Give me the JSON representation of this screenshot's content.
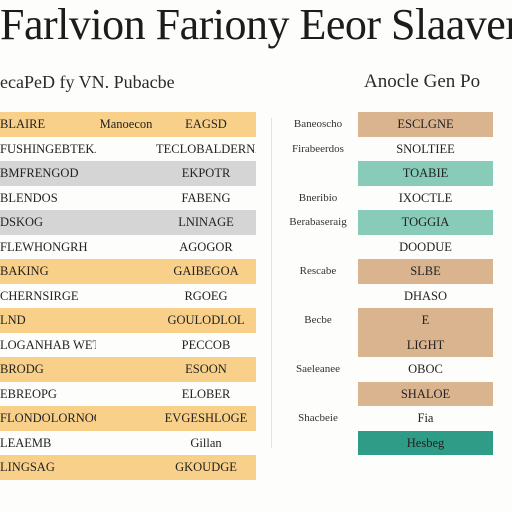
{
  "title": "Farlvion Fariony Eeor Slaaver",
  "headers": {
    "left": "ecaPeD fy VN. Pubacbe",
    "right": "Anocle Gen Po"
  },
  "colors": {
    "orange": "#f9d08a",
    "grey": "#d5d5d5",
    "tan": "#d9b48f",
    "teal": "#88cbb9",
    "teal_dark": "#2e9c86",
    "white": "#fdfdfb"
  },
  "left_rows": [
    {
      "c1": "BLAIRE",
      "c2": "Manoecon",
      "c3": "EAGSD",
      "bg": "orange"
    },
    {
      "c1": "FUSHINGEBTEKATO",
      "c2": "",
      "c3": "TECLOBALDERNAT",
      "bg": "white"
    },
    {
      "c1": "BMFRENGOD",
      "c2": "",
      "c3": "EKPOTR",
      "bg": "grey"
    },
    {
      "c1": "BLENDOS",
      "c2": "",
      "c3": "FABENG",
      "bg": "white"
    },
    {
      "c1": "DSKOG",
      "c2": "",
      "c3": "LNINAGE",
      "bg": "grey"
    },
    {
      "c1": "FLEWHONGRH",
      "c2": "",
      "c3": "AGOGOR",
      "bg": "white"
    },
    {
      "c1": "BAKING",
      "c2": "",
      "c3": "GAIBEGOA",
      "bg": "orange"
    },
    {
      "c1": "CHERNSIRGE",
      "c2": "",
      "c3": "RGOEG",
      "bg": "white"
    },
    {
      "c1": "LND",
      "c2": "",
      "c3": "GOULODLOL",
      "bg": "orange"
    },
    {
      "c1": "LOGANHAB WETHETRE",
      "c2": "",
      "c3": "PECCOB",
      "bg": "white"
    },
    {
      "c1": "BRODG",
      "c2": "",
      "c3": "ESOON",
      "bg": "orange"
    },
    {
      "c1": "EBREOPG",
      "c2": "",
      "c3": "ELOBER",
      "bg": "white"
    },
    {
      "c1": "FLONDOLORNOC",
      "c2": "",
      "c3": "EVGESHLOGE",
      "bg": "orange"
    },
    {
      "c1": "LEAEMB",
      "c2": "",
      "c3": "Gillan",
      "bg": "white"
    },
    {
      "c1": "LINGSAG",
      "c2": "",
      "c3": "GKOUDGE",
      "bg": "orange"
    }
  ],
  "right_labels": [
    "Baneoscho",
    "Firabeerdos",
    "",
    "Bneribio",
    "Berabaseraig",
    "",
    "Rescabe",
    "",
    "Becbe",
    "",
    "Saeleanee",
    "",
    "Shacbeie"
  ],
  "right_rows": [
    {
      "text": "ESCLGNE",
      "bg": "tan"
    },
    {
      "text": "SNOLTIEE",
      "bg": "white"
    },
    {
      "text": "TOABIE",
      "bg": "teal"
    },
    {
      "text": "IXOCTLE",
      "bg": "white"
    },
    {
      "text": "TOGGIA",
      "bg": "teal"
    },
    {
      "text": "DOODUE",
      "bg": "white"
    },
    {
      "text": "SLBE",
      "bg": "tan"
    },
    {
      "text": "DHASO",
      "bg": "white"
    },
    {
      "text": "E",
      "bg": "tan"
    },
    {
      "text": "LIGHT",
      "bg": "tan"
    },
    {
      "text": "OBOC",
      "bg": "white"
    },
    {
      "text": "SHALOE",
      "bg": "tan"
    },
    {
      "text": "Fia",
      "bg": "white"
    },
    {
      "text": "Hesbeg",
      "bg": "teal_dark"
    }
  ]
}
